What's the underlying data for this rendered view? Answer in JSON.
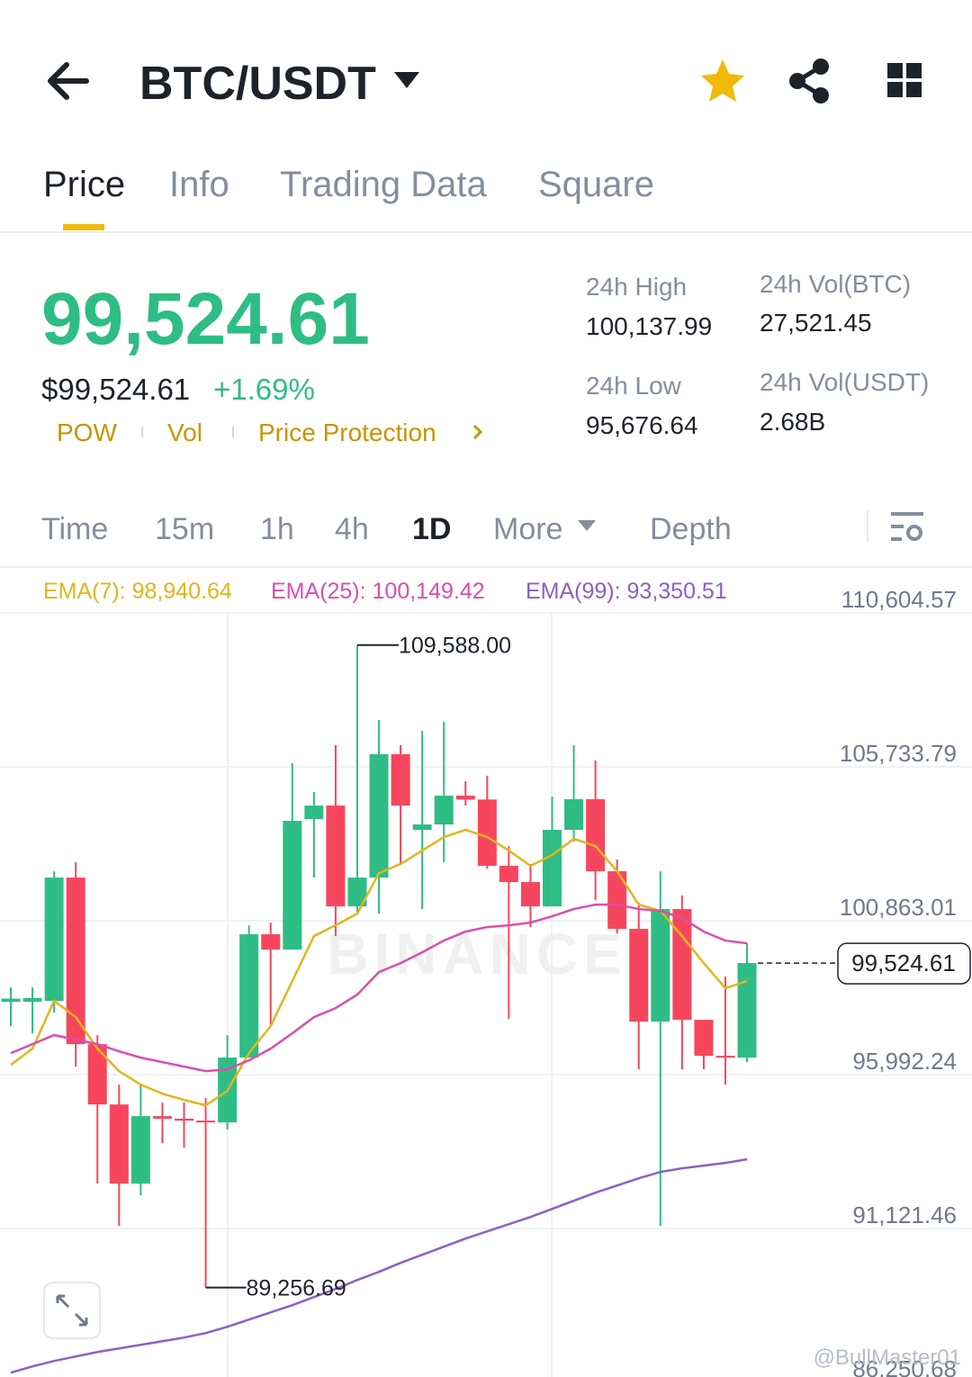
{
  "header": {
    "title": "BTC/USDT"
  },
  "tabs": [
    "Price",
    "Info",
    "Trading Data",
    "Square"
  ],
  "price": {
    "last": "99,524.61",
    "usd": "$99,524.61",
    "change": "+1.69%",
    "tags": [
      "POW",
      "Vol",
      "Price Protection"
    ]
  },
  "stats": [
    {
      "label": "24h High",
      "value": "100,137.99"
    },
    {
      "label": "24h Vol(BTC)",
      "value": "27,521.45"
    },
    {
      "label": "24h Low",
      "value": "95,676.64"
    },
    {
      "label": "24h Vol(USDT)",
      "value": "2.68B"
    }
  ],
  "intervals": [
    "Time",
    "15m",
    "1h",
    "4h",
    "1D",
    "More",
    "Depth"
  ],
  "watermark": "BINANCE",
  "credit": "@BullMaster01",
  "chart_data": {
    "type": "candlestick",
    "up_color": "#2ebd85",
    "down_color": "#f6465d",
    "ylim": [
      86200,
      112000
    ],
    "yticks": [
      {
        "value": 110604.57,
        "label": "110,604.57"
      },
      {
        "value": 105733.79,
        "label": "105,733.79"
      },
      {
        "value": 100863.01,
        "label": "100,863.01"
      },
      {
        "value": 95992.24,
        "label": "95,992.24"
      },
      {
        "value": 91121.46,
        "label": "91,121.46"
      },
      {
        "value": 86250.68,
        "label": "86,250.68"
      }
    ],
    "grid": true,
    "open": [
      98300,
      98300,
      98328,
      102230,
      96961,
      95052,
      92546,
      94682,
      94600,
      94540,
      94483,
      96534,
      100436,
      99952,
      104082,
      104509,
      101319,
      102230,
      106133,
      103740,
      103911,
      104822,
      104700,
      102601,
      102088,
      101319,
      103740,
      104709,
      102430,
      100607,
      97673,
      101234,
      97730,
      96591,
      96534
    ],
    "high": [
      98755,
      98755,
      102430,
      102715,
      97246,
      95679,
      95679,
      95109,
      95109,
      95252,
      97246,
      100721,
      100806,
      105848,
      104936,
      106418,
      109588,
      107215,
      106418,
      106873,
      107158,
      105278,
      105449,
      103227,
      102658,
      104794,
      106418,
      105933,
      102800,
      101433,
      102430,
      101661,
      97730,
      99097,
      100151
    ],
    "low": [
      97531,
      97303,
      97958,
      96249,
      92546,
      91207,
      92176,
      93828,
      93685,
      89256.69,
      94255,
      96534,
      97531,
      99952,
      102230,
      100379,
      101091,
      101091,
      102658,
      101234,
      102715,
      104509,
      102515,
      97758,
      100664,
      101319,
      103370,
      101518,
      100464,
      96163,
      91207,
      96163,
      96163,
      95679,
      96391
    ],
    "close": [
      98400,
      98420,
      102230,
      96961,
      95052,
      92546,
      94682,
      94600,
      94540,
      94483,
      96534,
      100436,
      99952,
      104025,
      104509,
      101319,
      102230,
      106133,
      104509,
      103911,
      104822,
      104700,
      102601,
      102088,
      101319,
      103740,
      104709,
      102430,
      100607,
      97673,
      101234,
      97730,
      96591,
      96534,
      99524.61
    ],
    "lines": [
      {
        "name": "EMA(7): 98,940.64",
        "color": "#e3b51c",
        "values": [
          96306,
          96818,
          98328,
          97815,
          96818,
          96106,
          95679,
          95394,
          95195,
          95024,
          95480,
          96676,
          97531,
          98955,
          100379,
          100721,
          101091,
          102373,
          102658,
          103085,
          103512,
          103740,
          103512,
          103085,
          102601,
          102943,
          103455,
          103227,
          102430,
          101376,
          101177,
          100379,
          99524,
          98727,
          98955
        ]
      },
      {
        "name": "EMA(25): 100,149.42",
        "color": "#d94fae",
        "values": [
          96676,
          96961,
          97246,
          97103,
          96961,
          96733,
          96534,
          96391,
          96249,
          96106,
          96163,
          96448,
          96818,
          97303,
          97815,
          98100,
          98528,
          99240,
          99524,
          99866,
          100237,
          100521,
          100664,
          100721,
          100806,
          101006,
          101234,
          101376,
          101376,
          101234,
          101177,
          100949,
          100521,
          100237,
          100151
        ]
      },
      {
        "name": "EMA(99): 93,350.51",
        "color": "#8e5fc4",
        "values": [
          86564,
          86764,
          86935,
          87077,
          87219,
          87333,
          87447,
          87561,
          87675,
          87818,
          88017,
          88245,
          88473,
          88701,
          88957,
          89213,
          89498,
          89754,
          90039,
          90296,
          90552,
          90808,
          91036,
          91264,
          91492,
          91748,
          92005,
          92261,
          92489,
          92717,
          92916,
          93030,
          93116,
          93201,
          93315
        ]
      }
    ],
    "last_price": {
      "value": 99524.61,
      "label": "99,524.61"
    },
    "high_label": {
      "value": 109588,
      "label": "109,588.00"
    },
    "low_label": {
      "value": 89256.69,
      "label": "89,256.69"
    }
  }
}
